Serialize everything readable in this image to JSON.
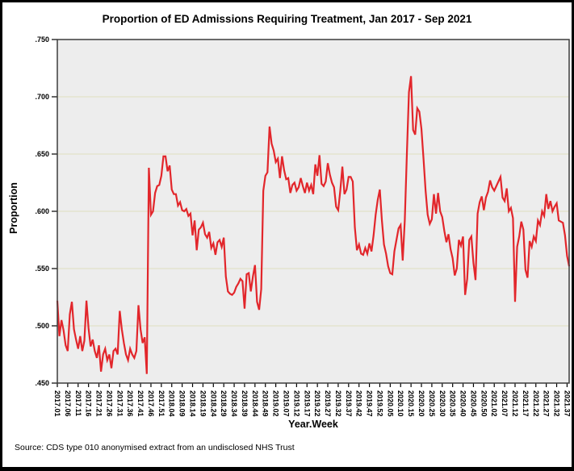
{
  "title": "Proportion of ED Admissions Requiring Treatment, Jan 2017 - Sep 2021",
  "y_axis": {
    "label": "Proportion"
  },
  "x_axis": {
    "label": "Year.Week"
  },
  "source_note": "Source: CDS type 010 anonymised extract from an undisclosed NHS Trust",
  "colors": {
    "line": "#e2262b",
    "plot_background": "#ededed",
    "gridline": "#e0dfc0",
    "frame": "#3c3c3c",
    "tick": "#000000",
    "outer_border": "#000000"
  },
  "chart_data": {
    "type": "line",
    "title": "Proportion of ED Admissions Requiring Treatment, Jan 2017 - Sep 2021",
    "xlabel": "Year.Week",
    "ylabel": "Proportion",
    "ylim": [
      0.45,
      0.75
    ],
    "grid": "horizontal-only",
    "legend": "none",
    "frequency": "weekly",
    "x_start": "2017.01",
    "x_end": "2021.38",
    "weeks_per_year": {
      "2017": 52,
      "2018": 52,
      "2019": 52,
      "2020": 53,
      "2021": 38
    },
    "y_tick_labels": [
      ".750",
      ".700",
      ".650",
      ".600",
      ".550",
      ".500",
      ".450"
    ],
    "x_tick_every_n_points": 5,
    "x_tick_labels": [
      "2017.01",
      "2017.06",
      "2017.11",
      "2017.16",
      "2017.21",
      "2017.26",
      "2017.31",
      "2017.36",
      "2017.41",
      "2017.46",
      "2017.51",
      "2018.04",
      "2018.09",
      "2018.14",
      "2018.19",
      "2018.24",
      "2018.29",
      "2018.34",
      "2018.39",
      "2018.44",
      "2018.49",
      "2019.02",
      "2019.07",
      "2019.12",
      "2019.17",
      "2019.22",
      "2019.27",
      "2019.32",
      "2019.37",
      "2019.42",
      "2019.47",
      "2019.52",
      "2020.05",
      "2020.10",
      "2020.15",
      "2020.20",
      "2020.25",
      "2020.30",
      "2020.35",
      "2020.40",
      "2020.45",
      "2020.50",
      "2021.02",
      "2021.07",
      "2021.12",
      "2021.17",
      "2021.22",
      "2021.27",
      "2021.32",
      "2021.37"
    ],
    "values": [
      0.522,
      0.491,
      0.505,
      0.496,
      0.483,
      0.478,
      0.51,
      0.521,
      0.497,
      0.488,
      0.48,
      0.491,
      0.478,
      0.487,
      0.522,
      0.498,
      0.482,
      0.488,
      0.478,
      0.472,
      0.483,
      0.46,
      0.475,
      0.48,
      0.47,
      0.475,
      0.463,
      0.478,
      0.48,
      0.475,
      0.513,
      0.497,
      0.485,
      0.475,
      0.47,
      0.48,
      0.475,
      0.472,
      0.478,
      0.518,
      0.497,
      0.485,
      0.49,
      0.458,
      0.638,
      0.597,
      0.6,
      0.616,
      0.622,
      0.623,
      0.631,
      0.648,
      0.648,
      0.635,
      0.64,
      0.619,
      0.615,
      0.615,
      0.605,
      0.608,
      0.601,
      0.6,
      0.602,
      0.596,
      0.598,
      0.579,
      0.592,
      0.566,
      0.584,
      0.586,
      0.59,
      0.58,
      0.577,
      0.582,
      0.568,
      0.572,
      0.562,
      0.573,
      0.575,
      0.569,
      0.577,
      0.543,
      0.53,
      0.528,
      0.527,
      0.529,
      0.534,
      0.537,
      0.541,
      0.539,
      0.515,
      0.545,
      0.546,
      0.53,
      0.543,
      0.553,
      0.521,
      0.514,
      0.532,
      0.618,
      0.631,
      0.634,
      0.674,
      0.659,
      0.653,
      0.643,
      0.646,
      0.629,
      0.648,
      0.636,
      0.628,
      0.629,
      0.616,
      0.623,
      0.625,
      0.618,
      0.621,
      0.629,
      0.622,
      0.616,
      0.625,
      0.618,
      0.623,
      0.615,
      0.641,
      0.631,
      0.649,
      0.624,
      0.622,
      0.626,
      0.642,
      0.632,
      0.625,
      0.621,
      0.604,
      0.601,
      0.618,
      0.639,
      0.615,
      0.619,
      0.63,
      0.63,
      0.626,
      0.586,
      0.566,
      0.571,
      0.563,
      0.562,
      0.568,
      0.563,
      0.572,
      0.565,
      0.579,
      0.597,
      0.61,
      0.619,
      0.592,
      0.571,
      0.563,
      0.552,
      0.546,
      0.545,
      0.565,
      0.575,
      0.585,
      0.588,
      0.557,
      0.592,
      0.65,
      0.704,
      0.718,
      0.671,
      0.667,
      0.69,
      0.687,
      0.672,
      0.646,
      0.618,
      0.597,
      0.589,
      0.593,
      0.615,
      0.598,
      0.616,
      0.6,
      0.595,
      0.583,
      0.573,
      0.58,
      0.567,
      0.559,
      0.544,
      0.55,
      0.575,
      0.57,
      0.578,
      0.527,
      0.541,
      0.575,
      0.578,
      0.555,
      0.54,
      0.598,
      0.608,
      0.613,
      0.601,
      0.612,
      0.617,
      0.627,
      0.621,
      0.618,
      0.622,
      0.626,
      0.63,
      0.612,
      0.609,
      0.62,
      0.6,
      0.603,
      0.594,
      0.521,
      0.569,
      0.578,
      0.591,
      0.584,
      0.549,
      0.542,
      0.574,
      0.569,
      0.578,
      0.574,
      0.592,
      0.588,
      0.6,
      0.596,
      0.615,
      0.602,
      0.609,
      0.6,
      0.604,
      0.607,
      0.592,
      0.591,
      0.59,
      0.579,
      0.561,
      0.552
    ]
  }
}
